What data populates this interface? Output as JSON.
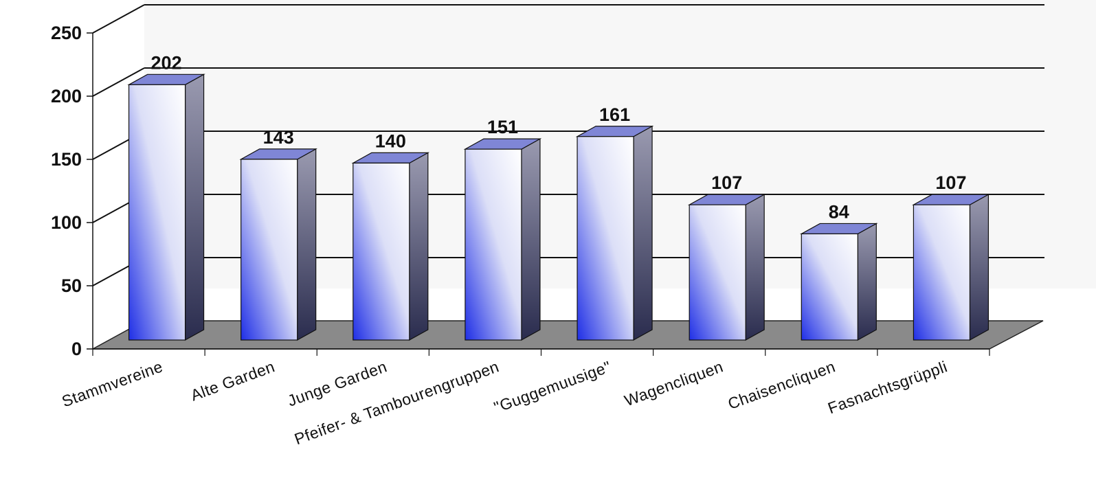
{
  "chart_data": {
    "type": "bar",
    "style": "3d-column",
    "categories": [
      "Stammvereine",
      "Alte Garden",
      "Junge Garden",
      "Pfeifer- & Tambourengruppen",
      "\"Guggemuusige\"",
      "Wagencliquen",
      "Chaisencliquen",
      "Fasnachtsgrüppli"
    ],
    "values": [
      202,
      143,
      140,
      151,
      161,
      107,
      84,
      107
    ],
    "data_labels": [
      "202",
      "143",
      "140",
      "151",
      "161",
      "107",
      "84",
      "107"
    ],
    "y_ticks": [
      "0",
      "50",
      "100",
      "150",
      "200",
      "250"
    ],
    "ylim": [
      0,
      250
    ],
    "grid": true,
    "legend": "none",
    "title": "",
    "xlabel": "",
    "ylabel": "",
    "colors": {
      "bar_front_light": "#ffffff",
      "bar_front_dark": "#1e2ee6",
      "bar_top": "#7f86d6",
      "bar_side_light": "#9a9ab0",
      "bar_side_dark": "#2a2c4e",
      "floor": "#8a8a8a",
      "wall": "#f7f7f7",
      "gridline": "#111111"
    }
  }
}
